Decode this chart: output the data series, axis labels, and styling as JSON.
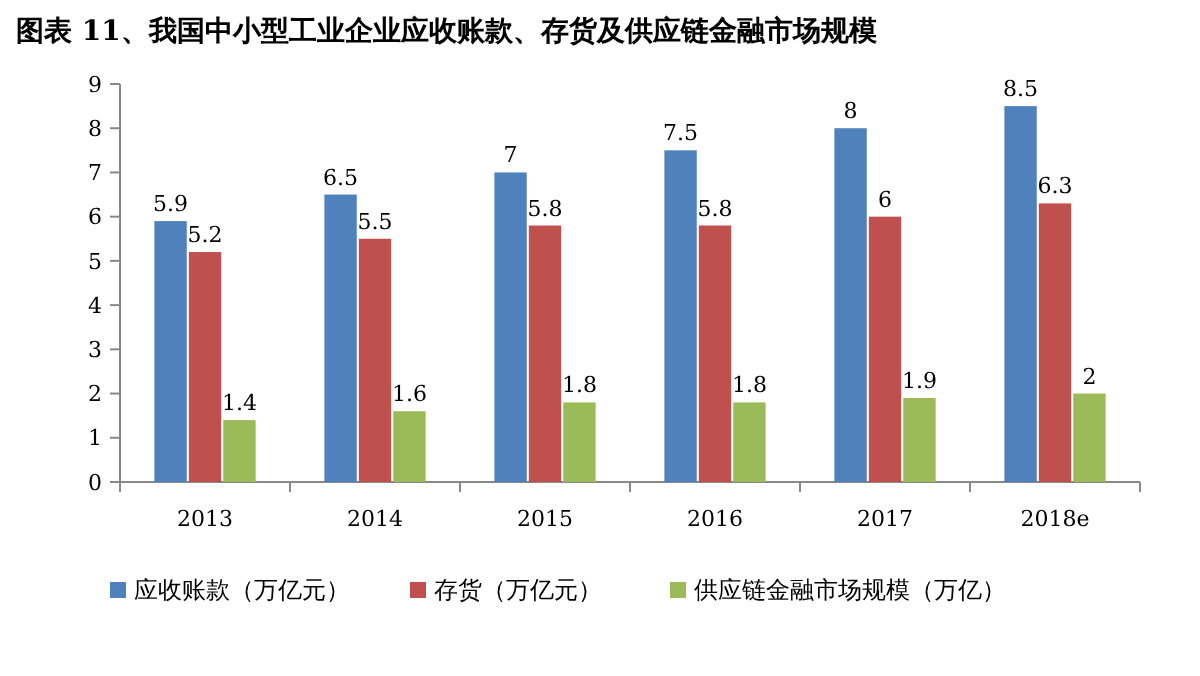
{
  "chart_data": {
    "type": "bar",
    "title": "图表 11、我国中小型工业企业应收账款、存货及供应链金融市场规模",
    "categories": [
      "2013",
      "2014",
      "2015",
      "2016",
      "2017",
      "2018e"
    ],
    "series": [
      {
        "name": "应收账款（万亿元）",
        "color": "#4f81bd",
        "values": [
          5.9,
          6.5,
          7,
          7.5,
          8,
          8.5
        ]
      },
      {
        "name": "存货（万亿元）",
        "color": "#c0504d",
        "values": [
          5.2,
          5.5,
          5.8,
          5.8,
          6,
          6.3
        ]
      },
      {
        "name": "供应链金融市场规模（万亿）",
        "color": "#9bbb59",
        "values": [
          1.4,
          1.6,
          1.8,
          1.8,
          1.9,
          2
        ]
      }
    ],
    "ylim": [
      0,
      9
    ],
    "yticks": [
      0,
      1,
      2,
      3,
      4,
      5,
      6,
      7,
      8,
      9
    ],
    "data_labels": true,
    "legend": "bottom"
  }
}
